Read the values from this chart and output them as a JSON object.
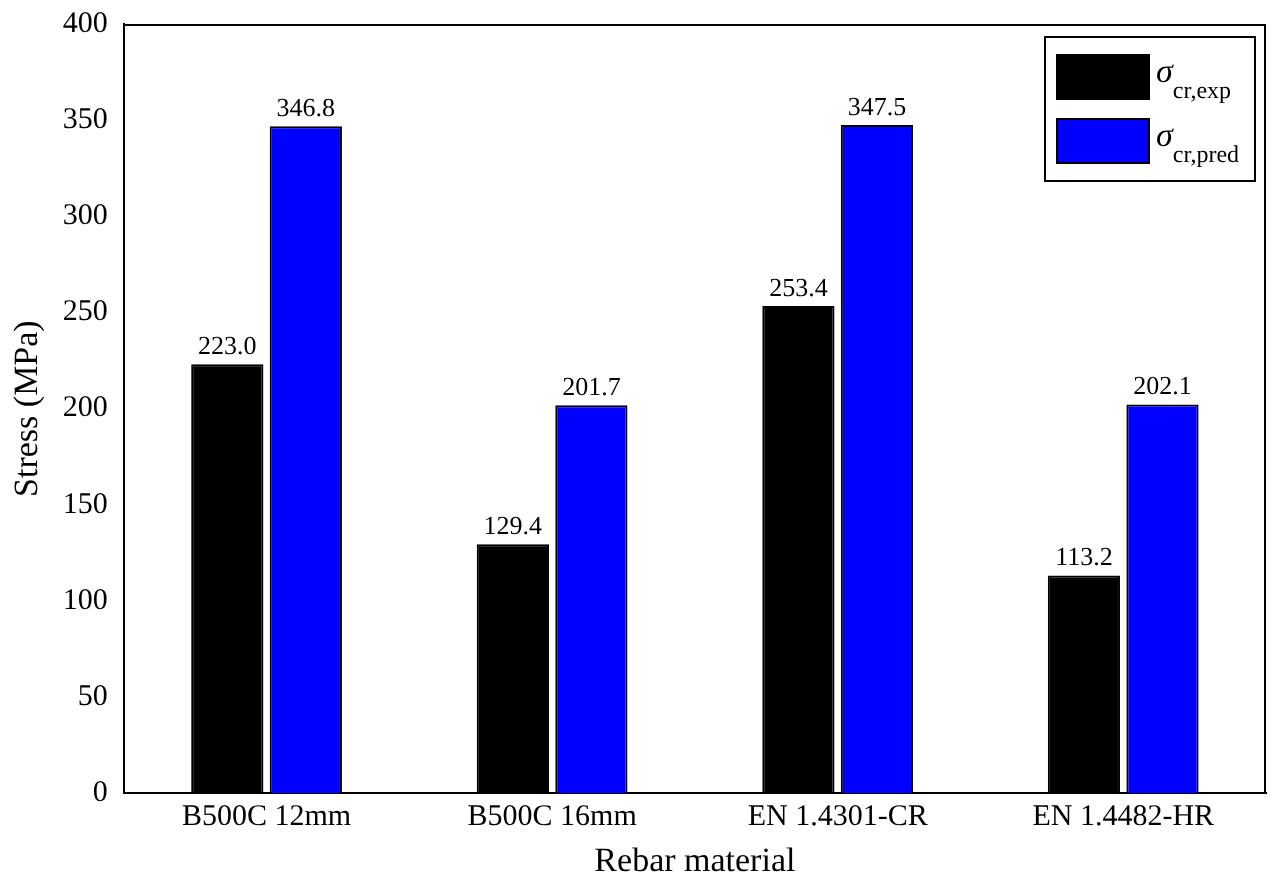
{
  "chart_data": {
    "type": "bar",
    "xlabel": "Rebar material",
    "ylabel": "Stress (MPa)",
    "categories": [
      "B500C 12mm",
      "B500C 16mm",
      "EN 1.4301-CR",
      "EN 1.4482-HR"
    ],
    "series": [
      {
        "name": "σ$_{cr,exp}$",
        "color": "#000000",
        "values": [
          223.0,
          129.4,
          253.4,
          113.2
        ],
        "value_labels": [
          "223.0",
          "129.4",
          "253.4",
          "113.2"
        ]
      },
      {
        "name": "σ$_{cr,pred}$",
        "color": "#0000ff",
        "values": [
          346.8,
          201.7,
          347.5,
          202.1
        ],
        "value_labels": [
          "346.8",
          "201.7",
          "347.5",
          "202.1"
        ]
      }
    ],
    "ylim": [
      0,
      400
    ],
    "yticks": [
      0,
      50,
      100,
      150,
      200,
      250,
      300,
      350,
      400
    ],
    "grid": false,
    "legend": "top right"
  }
}
